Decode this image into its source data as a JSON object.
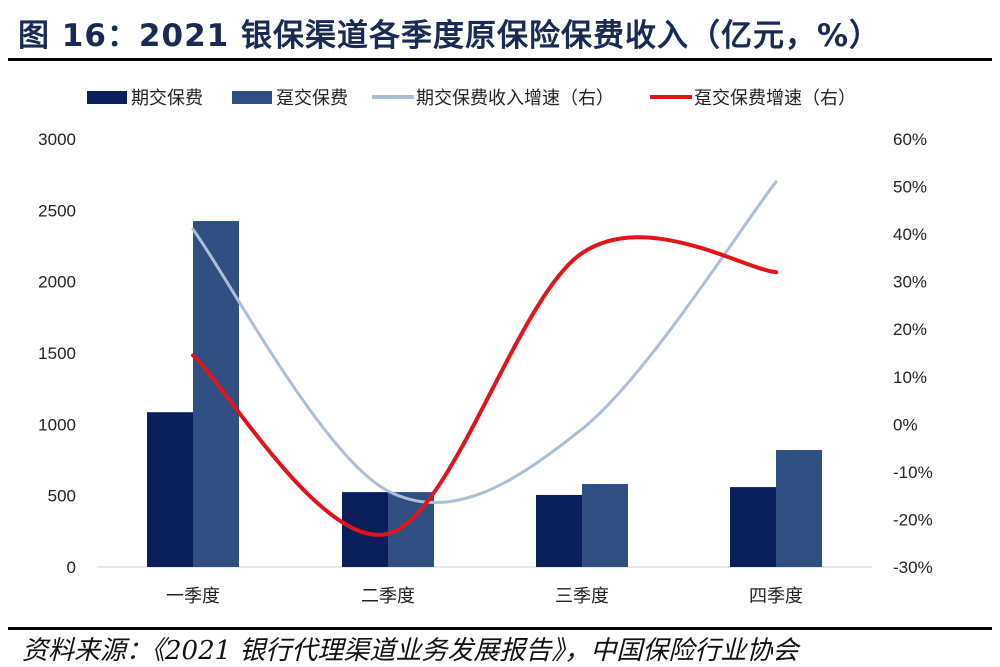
{
  "title": "图 16：2021 银保渠道各季度原保险保费收入（亿元，%）",
  "source": "资料来源：《2021 银行代理渠道业务发展报告》，中国保险行业协会",
  "chart_data": {
    "type": "bar",
    "title": "图 16：2021 银保渠道各季度原保险保费收入（亿元，%）",
    "categories": [
      "一季度",
      "二季度",
      "三季度",
      "四季度"
    ],
    "series": [
      {
        "name": "期交保费",
        "type": "bar",
        "axis": "left",
        "color": "#0b1f5c",
        "values": [
          1085,
          525,
          505,
          560
        ]
      },
      {
        "name": "趸交保费",
        "type": "bar",
        "axis": "left",
        "color": "#2f4f82",
        "values": [
          2425,
          525,
          582,
          820
        ]
      },
      {
        "name": "期交保费收入增速（右）",
        "type": "line",
        "axis": "right",
        "color": "#adbfd6",
        "values": [
          41,
          -14,
          -1,
          51
        ]
      },
      {
        "name": "趸交保费增速（右）",
        "type": "line",
        "axis": "right",
        "color": "#e0141b",
        "values": [
          14.5,
          -23,
          36,
          32
        ]
      }
    ],
    "left_axis": {
      "ylim": [
        0,
        3000
      ],
      "ticks": [
        "0",
        "500",
        "1000",
        "1500",
        "2000",
        "2500",
        "3000"
      ]
    },
    "right_axis": {
      "ylim": [
        -30,
        60
      ],
      "ticks": [
        "-30%",
        "-20%",
        "-10%",
        "0%",
        "10%",
        "20%",
        "30%",
        "40%",
        "50%",
        "60%"
      ]
    },
    "legend_position": "top",
    "grid": false
  }
}
